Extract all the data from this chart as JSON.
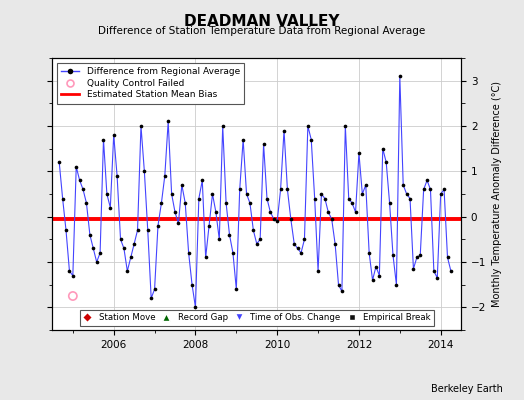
{
  "title": "DEADMAN VALLEY",
  "subtitle": "Difference of Station Temperature Data from Regional Average",
  "ylabel": "Monthly Temperature Anomaly Difference (°C)",
  "credit": "Berkeley Earth",
  "bias": -0.05,
  "xlim_num": [
    2004.5,
    2014.5
  ],
  "ylim": [
    -2.5,
    3.5
  ],
  "yticks": [
    -2,
    -1,
    0,
    1,
    2,
    3
  ],
  "xticks": [
    2006,
    2008,
    2010,
    2012,
    2014
  ],
  "bg_color": "#e8e8e8",
  "plot_bg": "#ffffff",
  "line_color": "#4444ff",
  "marker_color": "#000000",
  "bias_color": "#ff0000",
  "qc_failed_x": [
    2005.0
  ],
  "qc_failed_y": [
    -1.75
  ],
  "data_x": [
    2004.667,
    2004.75,
    2004.833,
    2004.917,
    2005.0,
    2005.083,
    2005.167,
    2005.25,
    2005.333,
    2005.417,
    2005.5,
    2005.583,
    2005.667,
    2005.75,
    2005.833,
    2005.917,
    2006.0,
    2006.083,
    2006.167,
    2006.25,
    2006.333,
    2006.417,
    2006.5,
    2006.583,
    2006.667,
    2006.75,
    2006.833,
    2006.917,
    2007.0,
    2007.083,
    2007.167,
    2007.25,
    2007.333,
    2007.417,
    2007.5,
    2007.583,
    2007.667,
    2007.75,
    2007.833,
    2007.917,
    2008.0,
    2008.083,
    2008.167,
    2008.25,
    2008.333,
    2008.417,
    2008.5,
    2008.583,
    2008.667,
    2008.75,
    2008.833,
    2008.917,
    2009.0,
    2009.083,
    2009.167,
    2009.25,
    2009.333,
    2009.417,
    2009.5,
    2009.583,
    2009.667,
    2009.75,
    2009.833,
    2009.917,
    2010.0,
    2010.083,
    2010.167,
    2010.25,
    2010.333,
    2010.417,
    2010.5,
    2010.583,
    2010.667,
    2010.75,
    2010.833,
    2010.917,
    2011.0,
    2011.083,
    2011.167,
    2011.25,
    2011.333,
    2011.417,
    2011.5,
    2011.583,
    2011.667,
    2011.75,
    2011.833,
    2011.917,
    2012.0,
    2012.083,
    2012.167,
    2012.25,
    2012.333,
    2012.417,
    2012.5,
    2012.583,
    2012.667,
    2012.75,
    2012.833,
    2012.917,
    2013.0,
    2013.083,
    2013.167,
    2013.25,
    2013.333,
    2013.417,
    2013.5,
    2013.583,
    2013.667,
    2013.75,
    2013.833,
    2013.917,
    2014.0,
    2014.083,
    2014.167,
    2014.25
  ],
  "data_y": [
    1.2,
    0.4,
    -0.3,
    -1.2,
    -1.3,
    1.1,
    0.8,
    0.6,
    0.3,
    -0.4,
    -0.7,
    -1.0,
    -0.8,
    1.7,
    0.5,
    0.2,
    1.8,
    0.9,
    -0.5,
    -0.7,
    -1.2,
    -0.9,
    -0.6,
    -0.3,
    2.0,
    1.0,
    -0.3,
    -1.8,
    -1.6,
    -0.2,
    0.3,
    0.9,
    2.1,
    0.5,
    0.1,
    -0.15,
    0.7,
    0.3,
    -0.8,
    -1.5,
    -2.0,
    0.4,
    0.8,
    -0.9,
    -0.2,
    0.5,
    0.1,
    -0.5,
    2.0,
    0.3,
    -0.4,
    -0.8,
    -1.6,
    0.6,
    1.7,
    0.5,
    0.3,
    -0.3,
    -0.6,
    -0.5,
    1.6,
    0.4,
    0.1,
    -0.05,
    -0.1,
    0.6,
    1.9,
    0.6,
    -0.05,
    -0.6,
    -0.7,
    -0.8,
    -0.5,
    2.0,
    1.7,
    0.4,
    -1.2,
    0.5,
    0.4,
    0.1,
    -0.05,
    -0.6,
    -1.5,
    -1.65,
    2.0,
    0.4,
    0.3,
    0.1,
    1.4,
    0.5,
    0.7,
    -0.8,
    -1.4,
    -1.1,
    -1.3,
    1.5,
    1.2,
    0.3,
    -0.85,
    -1.5,
    3.1,
    0.7,
    0.5,
    0.4,
    -1.15,
    -0.9,
    -0.85,
    0.6,
    0.8,
    0.6,
    -1.2,
    -1.35,
    0.5,
    0.6,
    -0.9,
    -1.2
  ]
}
